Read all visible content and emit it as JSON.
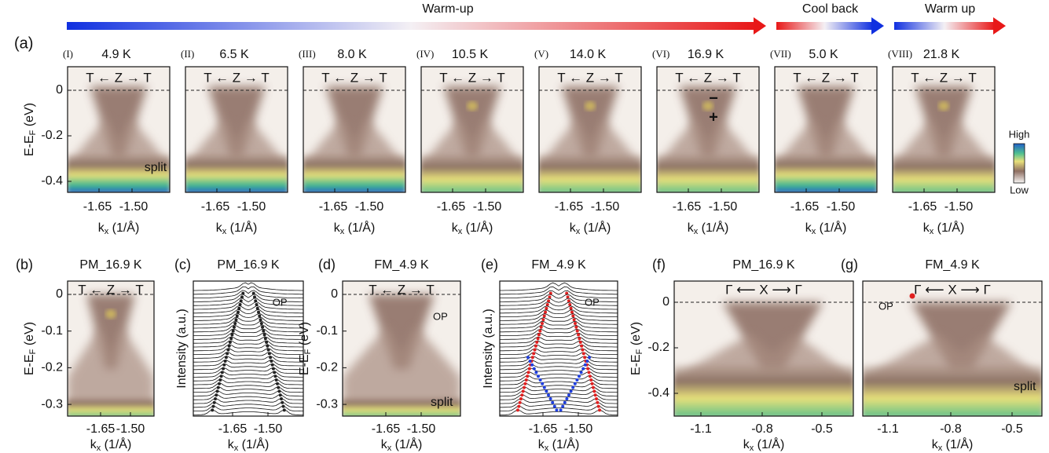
{
  "arrows": [
    "Warm-up",
    "Cool back",
    "Warm up"
  ],
  "row_a": {
    "label": "(a)",
    "y_label": {
      "main": "E-E",
      "sub": "F",
      "unit": " (eV)"
    },
    "y_ticks": [
      "0",
      "-0.2",
      "-0.4"
    ],
    "colorbar": {
      "high": "High",
      "low": "Low"
    },
    "panels": [
      {
        "roman": "(I)",
        "temp": "4.9 K",
        "direction": "T ← Z → T",
        "x_ticks": [
          "-1.65",
          "-1.50"
        ],
        "x_label": {
          "main": "k",
          "sub": "x",
          "unit": " (1/Å)"
        },
        "annotations": [
          "split"
        ]
      },
      {
        "roman": "(II)",
        "temp": "6.5 K",
        "direction": "T ← Z → T",
        "x_ticks": [
          "-1.65",
          "-1.50"
        ],
        "x_label": {
          "main": "k",
          "sub": "x",
          "unit": " (1/Å)"
        }
      },
      {
        "roman": "(III)",
        "temp": "8.0 K",
        "direction": "T ← Z → T",
        "x_ticks": [
          "-1.65",
          "-1.50"
        ],
        "x_label": {
          "main": "k",
          "sub": "x",
          "unit": " (1/Å)"
        }
      },
      {
        "roman": "(IV)",
        "temp": "10.5 K",
        "direction": "T ← Z → T",
        "x_ticks": [
          "-1.65",
          "-1.50"
        ],
        "x_label": {
          "main": "k",
          "sub": "x",
          "unit": " (1/Å)"
        }
      },
      {
        "roman": "(V)",
        "temp": "14.0 K",
        "direction": "T ← Z → T",
        "x_ticks": [
          "-1.65",
          "-1.50"
        ],
        "x_label": {
          "main": "k",
          "sub": "x",
          "unit": " (1/Å)"
        }
      },
      {
        "roman": "(VI)",
        "temp": "16.9 K",
        "direction": "T ← Z → T",
        "x_ticks": [
          "-1.65",
          "-1.50"
        ],
        "x_label": {
          "main": "k",
          "sub": "x",
          "unit": " (1/Å)"
        },
        "annotations": [
          "−",
          "+"
        ]
      },
      {
        "roman": "(VII)",
        "temp": "5.0 K",
        "direction": "T ← Z → T",
        "x_ticks": [
          "-1.65",
          "-1.50"
        ],
        "x_label": {
          "main": "k",
          "sub": "x",
          "unit": " (1/Å)"
        }
      },
      {
        "roman": "(VIII)",
        "temp": "21.8 K",
        "direction": "T ← Z → T",
        "x_ticks": [
          "-1.65",
          "-1.50"
        ],
        "x_label": {
          "main": "k",
          "sub": "x",
          "unit": " (1/Å)"
        }
      }
    ]
  },
  "row_b": [
    {
      "letter": "(b)",
      "title": "PM_16.9 K",
      "direction": "T ← Z → T",
      "y_ticks": [
        "0",
        "-0.1",
        "-0.2",
        "-0.3"
      ],
      "y_label": {
        "main": "E-E",
        "sub": "F",
        "unit": " (eV)"
      },
      "x_ticks": [
        "-1.65",
        "-1.50"
      ],
      "x_label": {
        "main": "k",
        "sub": "x",
        "unit": " (1/Å)"
      }
    },
    {
      "letter": "(c)",
      "title": "PM_16.9 K",
      "y_label": {
        "main": "Intensity (a.u.)"
      },
      "x_ticks": [
        "-1.65",
        "-1.50"
      ],
      "x_label": {
        "main": "k",
        "sub": "x",
        "unit": " (1/Å)"
      },
      "annotations": [
        "OP"
      ]
    },
    {
      "letter": "(d)",
      "title": "FM_4.9 K",
      "direction": "T ← Z → T",
      "y_ticks": [
        "0",
        "-0.1",
        "-0.2",
        "-0.3"
      ],
      "y_label": {
        "main": "E-E",
        "sub": "F",
        "unit": " (eV)"
      },
      "x_ticks": [
        "-1.65",
        "-1.50"
      ],
      "x_label": {
        "main": "k",
        "sub": "x",
        "unit": " (1/Å)"
      },
      "annotations": [
        "OP",
        "split"
      ]
    },
    {
      "letter": "(e)",
      "title": "FM_4.9 K",
      "y_label": {
        "main": "Intensity (a.u.)"
      },
      "x_ticks": [
        "-1.65",
        "-1.50"
      ],
      "x_label": {
        "main": "k",
        "sub": "x",
        "unit": " (1/Å)"
      },
      "annotations": [
        "OP"
      ]
    },
    {
      "letter": "(f)",
      "title": "PM_16.9 K",
      "direction": "Γ ⟵ X ⟶ Γ",
      "y_ticks": [
        "0",
        "-0.2",
        "-0.4"
      ],
      "y_label": {
        "main": "E-E",
        "sub": "F",
        "unit": " (eV)"
      },
      "x_ticks": [
        "-1.1",
        "-0.8",
        "-0.5"
      ],
      "x_label": {
        "main": "k",
        "sub": "x",
        "unit": " (1/Å)"
      }
    },
    {
      "letter": "(g)",
      "title": "FM_4.9 K",
      "direction": "Γ ⟵ X ⟶ Γ",
      "x_ticks": [
        "-1.1",
        "-0.8",
        "-0.5"
      ],
      "x_label": {
        "main": "k",
        "sub": "x",
        "unit": " (1/Å)"
      },
      "annotations": [
        "OP",
        "split"
      ]
    }
  ]
}
